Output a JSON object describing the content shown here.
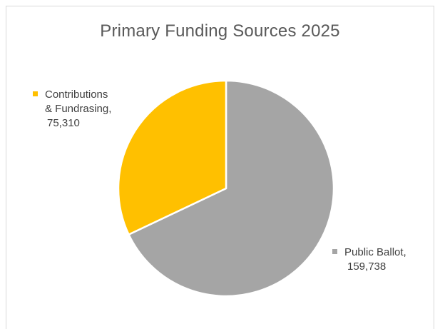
{
  "chart_data": {
    "type": "pie",
    "title": "Primary Funding Sources 2025",
    "slices": [
      {
        "label": "Public Ballot",
        "label_lines": [
          "Public Ballot,",
          "159,738"
        ],
        "value": 159738,
        "value_text": "159,738",
        "color": "#a5a5a5"
      },
      {
        "label": "Contributions & Fundrasing",
        "label_lines": [
          "Contributions",
          "& Fundrasing,",
          "75,310"
        ],
        "value": 75310,
        "value_text": "75,310",
        "color": "#ffc000"
      }
    ],
    "start_angle_deg": 0,
    "direction": "clockwise",
    "slice_border_color": "#ffffff",
    "legend": "none",
    "labels": "outside-with-values"
  }
}
